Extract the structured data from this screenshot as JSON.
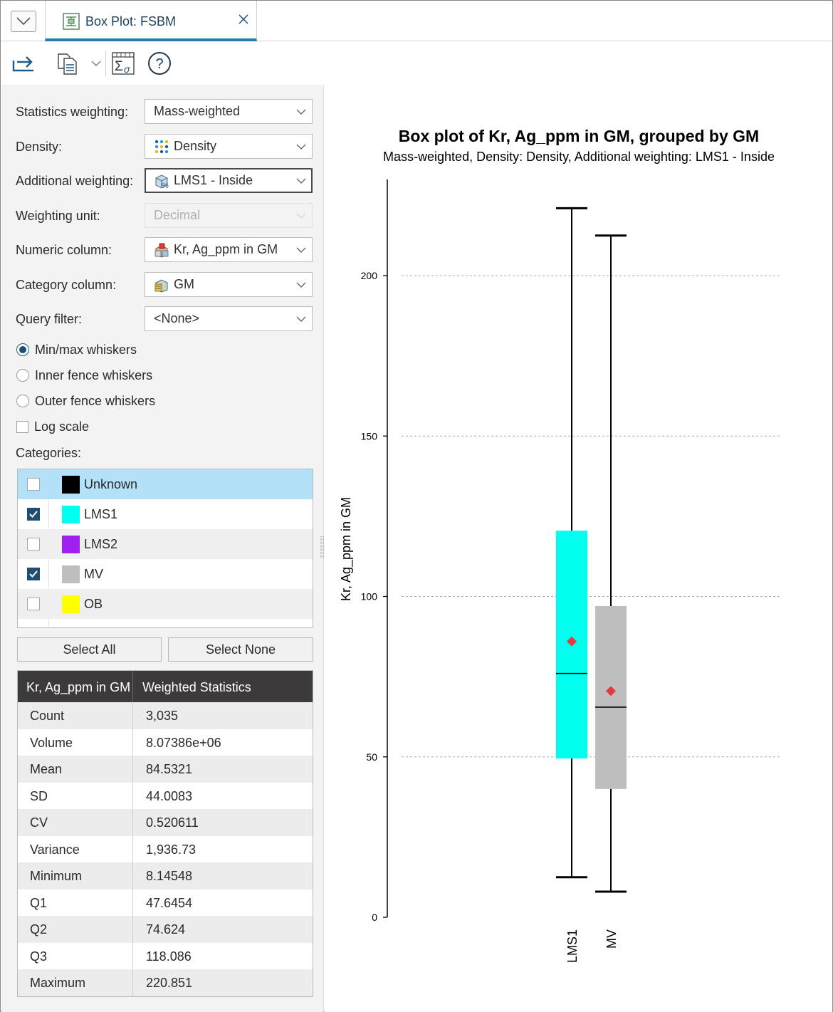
{
  "tab": {
    "title": "Box Plot: FSBM"
  },
  "toolbar": {
    "export_icon": "export-arrow-icon",
    "copy_icon": "copy-icon",
    "statistics_icon": "statistics-sigma-icon",
    "help_icon": "help-icon"
  },
  "form": {
    "statistics_weighting": {
      "label": "Statistics weighting:",
      "value": "Mass-weighted"
    },
    "density": {
      "label": "Density:",
      "value": "Density"
    },
    "additional_weighting": {
      "label": "Additional weighting:",
      "value": "LMS1 - Inside"
    },
    "weighting_unit": {
      "label": "Weighting unit:",
      "value": "Decimal"
    },
    "numeric_column": {
      "label": "Numeric column:",
      "value": "Kr, Ag_ppm in GM"
    },
    "category_column": {
      "label": "Category column:",
      "value": "GM"
    },
    "query_filter": {
      "label": "Query filter:",
      "value": "<None>"
    }
  },
  "whiskers": [
    {
      "label": "Min/max whiskers",
      "selected": true
    },
    {
      "label": "Inner fence whiskers",
      "selected": false
    },
    {
      "label": "Outer fence whiskers",
      "selected": false
    }
  ],
  "log_scale": {
    "label": "Log scale",
    "checked": false
  },
  "categories_label": "Categories:",
  "categories": [
    {
      "name": "Unknown",
      "checked": false,
      "color": "#000000"
    },
    {
      "name": "LMS1",
      "checked": true,
      "color": "#00ffee"
    },
    {
      "name": "LMS2",
      "checked": false,
      "color": "#a020f0"
    },
    {
      "name": "MV",
      "checked": true,
      "color": "#bebebe"
    },
    {
      "name": "OB",
      "checked": false,
      "color": "#ffff00"
    }
  ],
  "buttons": {
    "select_all": "Select All",
    "select_none": "Select None"
  },
  "stats_table": {
    "headers": [
      "Kr, Ag_ppm in GM",
      "Weighted Statistics"
    ],
    "rows": [
      [
        "Count",
        "3,035"
      ],
      [
        "Volume",
        "8.07386e+06"
      ],
      [
        "Mean",
        "84.5321"
      ],
      [
        "SD",
        "44.0083"
      ],
      [
        "CV",
        "0.520611"
      ],
      [
        "Variance",
        "1,936.73"
      ],
      [
        "Minimum",
        "8.14548"
      ],
      [
        "Q1",
        "47.6454"
      ],
      [
        "Q2",
        "74.624"
      ],
      [
        "Q3",
        "118.086"
      ],
      [
        "Maximum",
        "220.851"
      ]
    ]
  },
  "chart_data": {
    "type": "box",
    "title": "Box plot of Kr, Ag_ppm in GM, grouped by GM",
    "subtitle": "Mass-weighted, Density: Density, Additional weighting: LMS1 - Inside",
    "ylabel": "Kr, Ag_ppm in GM",
    "ylim": [
      0,
      225
    ],
    "yticks": [
      0,
      50,
      100,
      150,
      200
    ],
    "grid": true,
    "categories": [
      "LMS1",
      "MV"
    ],
    "boxes": [
      {
        "name": "LMS1",
        "color": "#00ffee",
        "min": 12.5,
        "q1": 49.5,
        "median": 76,
        "q3": 120.5,
        "max": 221,
        "mean": 86
      },
      {
        "name": "MV",
        "color": "#bebebe",
        "min": 8,
        "q1": 40,
        "median": 65.5,
        "q3": 97,
        "max": 212.5,
        "mean": 70.5
      }
    ],
    "mean_marker_color": "#e23b3b"
  }
}
